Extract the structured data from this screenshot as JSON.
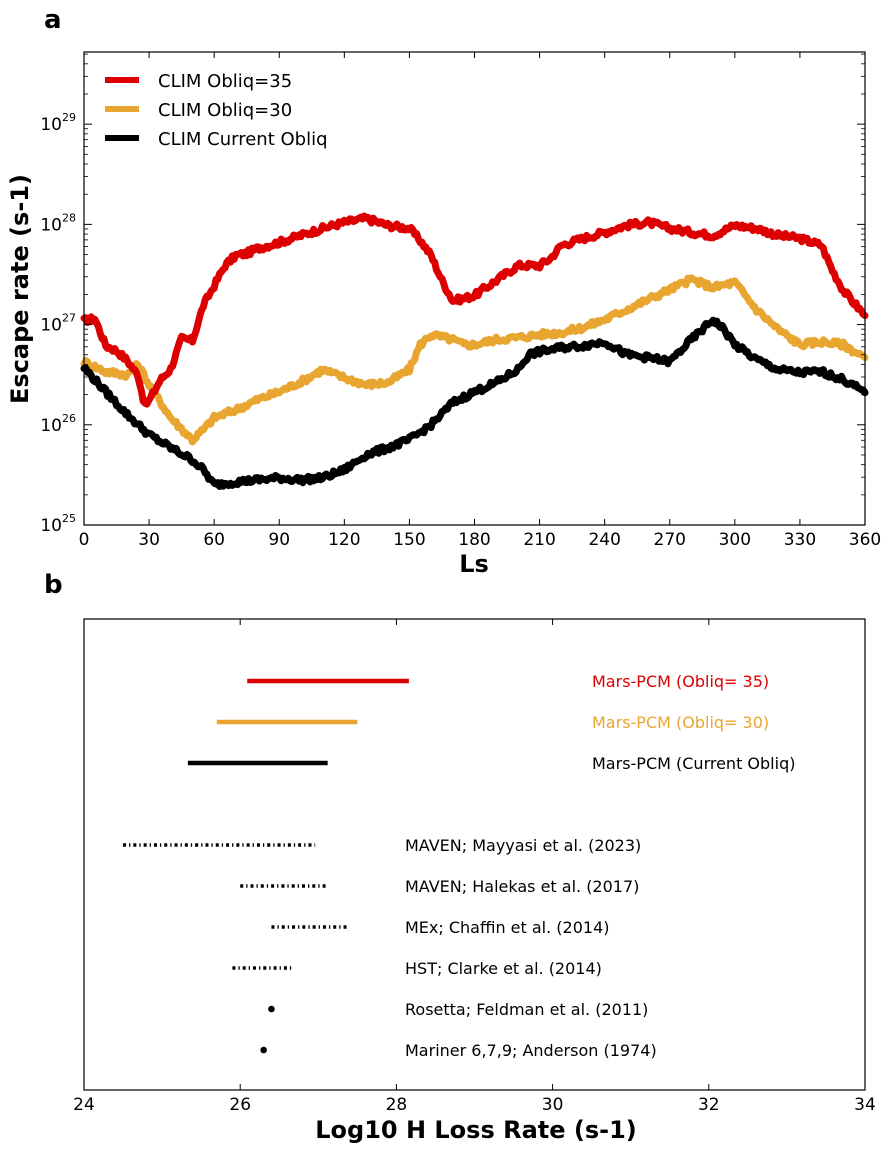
{
  "chart_data": [
    {
      "panel": "a",
      "type": "line",
      "title": "",
      "xlabel": "Ls",
      "ylabel": "Escape rate (s-1)",
      "xlim": [
        0,
        360
      ],
      "ylim_log10": [
        25,
        29.72
      ],
      "yscale": "log",
      "xticks": [
        "0",
        "30",
        "60",
        "90",
        "120",
        "150",
        "180",
        "210",
        "240",
        "270",
        "300",
        "330",
        "360"
      ],
      "yticks": [
        {
          "base": "10",
          "exp": "25"
        },
        {
          "base": "10",
          "exp": "26"
        },
        {
          "base": "10",
          "exp": "27"
        },
        {
          "base": "10",
          "exp": "28"
        },
        {
          "base": "10",
          "exp": "29"
        }
      ],
      "legend_position": "top-left",
      "grid": false,
      "series": [
        {
          "name": "CLIM Obliq=35",
          "color": "#dd0000",
          "x": [
            0,
            5,
            10,
            15,
            20,
            25,
            28,
            30,
            35,
            40,
            45,
            50,
            55,
            60,
            65,
            70,
            75,
            80,
            90,
            100,
            110,
            120,
            130,
            140,
            150,
            155,
            160,
            165,
            170,
            175,
            180,
            190,
            200,
            210,
            215,
            220,
            230,
            240,
            250,
            260,
            270,
            280,
            290,
            300,
            310,
            320,
            330,
            340,
            345,
            350,
            360
          ],
          "log10_y": [
            27.04,
            27.06,
            26.79,
            26.74,
            26.64,
            26.49,
            26.19,
            26.24,
            26.44,
            26.56,
            26.86,
            26.84,
            27.19,
            27.39,
            27.59,
            27.69,
            27.71,
            27.76,
            27.82,
            27.89,
            27.96,
            28.02,
            28.06,
            27.99,
            27.96,
            27.84,
            27.69,
            27.44,
            27.24,
            27.26,
            27.29,
            27.44,
            27.59,
            27.59,
            27.66,
            27.79,
            27.86,
            27.92,
            27.99,
            28.02,
            27.96,
            27.92,
            27.89,
            27.99,
            27.96,
            27.89,
            27.86,
            27.79,
            27.54,
            27.34,
            27.09
          ]
        },
        {
          "name": "CLIM Obliq=30",
          "color": "#e8a530",
          "x": [
            0,
            10,
            20,
            25,
            30,
            40,
            50,
            55,
            60,
            70,
            80,
            90,
            100,
            110,
            120,
            130,
            140,
            150,
            155,
            160,
            170,
            175,
            180,
            190,
            200,
            210,
            220,
            230,
            240,
            250,
            260,
            270,
            280,
            290,
            300,
            310,
            320,
            330,
            340,
            350,
            360
          ],
          "log10_y": [
            26.63,
            26.53,
            26.5,
            26.6,
            26.4,
            26.07,
            25.85,
            25.95,
            26.07,
            26.15,
            26.25,
            26.33,
            26.43,
            26.55,
            26.47,
            26.4,
            26.42,
            26.55,
            26.8,
            26.9,
            26.85,
            26.8,
            26.8,
            26.85,
            26.87,
            26.9,
            26.92,
            26.97,
            27.05,
            27.15,
            27.25,
            27.35,
            27.45,
            27.37,
            27.42,
            27.15,
            26.95,
            26.8,
            26.83,
            26.8,
            26.67
          ]
        },
        {
          "name": "CLIM Current Obliq",
          "color": "#000000",
          "x": [
            0,
            10,
            20,
            30,
            40,
            50,
            55,
            60,
            70,
            80,
            90,
            100,
            110,
            120,
            130,
            140,
            150,
            160,
            170,
            180,
            190,
            200,
            205,
            210,
            220,
            230,
            240,
            250,
            260,
            270,
            280,
            290,
            295,
            300,
            310,
            320,
            330,
            340,
            350,
            360
          ],
          "log10_y": [
            26.57,
            26.33,
            26.1,
            25.9,
            25.77,
            25.65,
            25.55,
            25.4,
            25.43,
            25.45,
            25.47,
            25.45,
            25.47,
            25.55,
            25.7,
            25.77,
            25.85,
            26.0,
            26.22,
            26.33,
            26.42,
            26.55,
            26.7,
            26.73,
            26.77,
            26.79,
            26.83,
            26.7,
            26.67,
            26.63,
            26.85,
            27.05,
            26.95,
            26.8,
            26.65,
            26.55,
            26.52,
            26.53,
            26.45,
            26.32
          ]
        }
      ]
    },
    {
      "panel": "b",
      "type": "range",
      "title": "",
      "xlabel": "Log10 H Loss Rate (s-1)",
      "ylabel": "",
      "xlim": [
        24,
        34
      ],
      "xticks": [
        "24",
        "26",
        "28",
        "30",
        "32",
        "34"
      ],
      "grid": false,
      "items": [
        {
          "label": "Mars-PCM (Obliq= 35)",
          "color": "#dd0000",
          "style": "solid",
          "range": [
            26.09,
            28.16
          ]
        },
        {
          "label": "Mars-PCM (Obliq= 30)",
          "color": "#e8a530",
          "style": "solid",
          "range": [
            25.7,
            27.5
          ]
        },
        {
          "label": "Mars-PCM (Current Obliq)",
          "color": "#000000",
          "style": "solid",
          "range": [
            25.33,
            27.12
          ]
        },
        {
          "label": "MAVEN; Mayyasi et al. (2023)",
          "color": "#000000",
          "style": "dashdot",
          "range": [
            24.5,
            26.96
          ]
        },
        {
          "label": "MAVEN; Halekas et al. (2017)",
          "color": "#000000",
          "style": "dashdot",
          "range": [
            26.0,
            27.1
          ]
        },
        {
          "label": "MEx; Chaffin et al. (2014)",
          "color": "#000000",
          "style": "dashdot",
          "range": [
            26.4,
            27.4
          ]
        },
        {
          "label": "HST; Clarke et al. (2014)",
          "color": "#000000",
          "style": "dashdot",
          "range": [
            25.9,
            26.66
          ]
        },
        {
          "label": "Rosetta; Feldman et al. (2011)",
          "color": "#000000",
          "style": "point",
          "range": [
            26.4,
            26.4
          ]
        },
        {
          "label": "Mariner 6,7,9; Anderson (1974)",
          "color": "#000000",
          "style": "point",
          "range": [
            26.3,
            26.3
          ]
        }
      ]
    }
  ],
  "panels": {
    "a_letter": "a",
    "b_letter": "b"
  }
}
